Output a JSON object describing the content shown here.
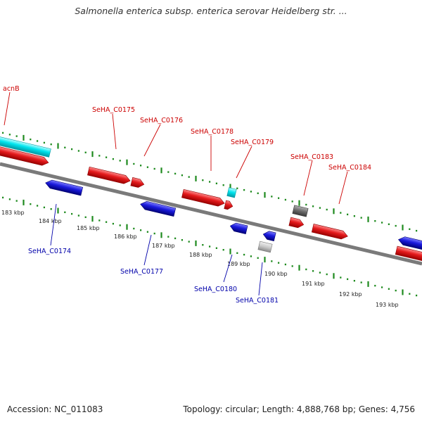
{
  "title": "Salmonella enterica subsp. enterica serovar Heidelberg str. ...",
  "footer": {
    "accession": "Accession: NC_011083",
    "stats": "Topology: circular; Length: 4,888,768 bp; Genes: 4,756"
  },
  "colors": {
    "forward_gene": "#e41a1c",
    "reverse_gene": "#1a1adc",
    "rna": "#00e5ee",
    "pseudo": "#777777",
    "pseudo_light": "#c8c8c8",
    "backbone": "#7a7a7a",
    "tick": "#1e8a1e",
    "forward_label": "#cc0000",
    "reverse_label": "#0000aa"
  },
  "scale_ticks": [
    "183 kbp",
    "184 kbp",
    "185 kbp",
    "186 kbp",
    "187 kbp",
    "188 kbp",
    "189 kbp",
    "190 kbp",
    "191 kbp",
    "192 kbp",
    "193 kbp"
  ],
  "forward_labels": [
    "acnB",
    "SeHA_C0175",
    "SeHA_C0176",
    "SeHA_C0178",
    "SeHA_C0179",
    "SeHA_C0183",
    "SeHA_C0184"
  ],
  "reverse_labels": [
    "SeHA_C0174",
    "SeHA_C0177",
    "SeHA_C0180",
    "SeHA_C0181"
  ]
}
